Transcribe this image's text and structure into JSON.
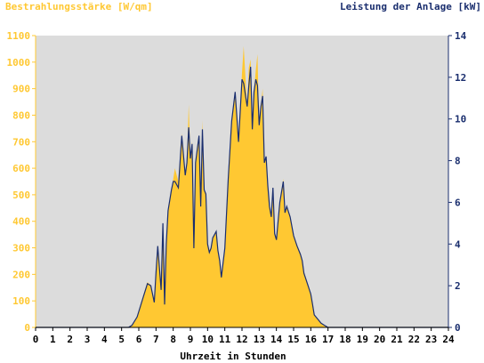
{
  "chart_data": {
    "type": "area",
    "y_left_label": "Bestrahlungsstärke [W/qm]",
    "y_right_label": "Leistung der Anlage [kW]",
    "xlabel": "Uhrzeit in Stunden",
    "x_ticks": [
      "0",
      "1",
      "2",
      "3",
      "4",
      "5",
      "6",
      "7",
      "8",
      "9",
      "10",
      "11",
      "12",
      "13",
      "14",
      "15",
      "16",
      "17",
      "18",
      "19",
      "20",
      "21",
      "22",
      "23",
      "24"
    ],
    "y_left_ticks": [
      "0",
      "100",
      "200",
      "300",
      "400",
      "500",
      "600",
      "700",
      "800",
      "900",
      "1000",
      "1100"
    ],
    "y_right_ticks": [
      "0",
      "2",
      "4",
      "6",
      "8",
      "10",
      "12",
      "14"
    ],
    "x_range": [
      0,
      24
    ],
    "y_left_range": [
      0,
      1100
    ],
    "y_right_range": [
      0,
      14
    ],
    "grid": false,
    "colors": {
      "plot_background": "#dcdcdc",
      "irradiance_fill": "#ffc832",
      "power_line": "#1a2e6e",
      "left_axis_text": "#ffc832",
      "right_axis_text": "#1a2e6e",
      "x_axis_text": "#000000"
    },
    "series": [
      {
        "axis": "left",
        "style": "area",
        "x": [
          0,
          5.4,
          5.6,
          5.9,
          6.2,
          6.5,
          6.7,
          6.9,
          7.0,
          7.1,
          7.3,
          7.4,
          7.5,
          7.6,
          7.7,
          7.8,
          7.9,
          8.0,
          8.1,
          8.3,
          8.5,
          8.7,
          8.8,
          8.9,
          9.0,
          9.1,
          9.2,
          9.3,
          9.5,
          9.6,
          9.7,
          9.8,
          9.9,
          10.0,
          10.1,
          10.2,
          10.3,
          10.5,
          10.6,
          10.7,
          10.8,
          11.0,
          11.2,
          11.4,
          11.6,
          11.8,
          12.0,
          12.1,
          12.3,
          12.4,
          12.5,
          12.6,
          12.7,
          12.8,
          12.9,
          13.0,
          13.1,
          13.2,
          13.3,
          13.4,
          13.5,
          13.6,
          13.7,
          13.8,
          13.9,
          14.0,
          14.2,
          14.4,
          14.5,
          14.6,
          14.8,
          15.0,
          15.2,
          15.4,
          15.5,
          15.6,
          15.8,
          16.0,
          16.1,
          16.2,
          16.4,
          16.6,
          16.8,
          17.0,
          17.2,
          17.4,
          17.6,
          17.8,
          18.0,
          18.2,
          18.4,
          18.6,
          18.8,
          19.0,
          19.2,
          19.4,
          19.6,
          19.8,
          20.0,
          24
        ],
        "values": [
          0,
          0,
          10,
          40,
          110,
          170,
          160,
          100,
          200,
          310,
          150,
          380,
          90,
          320,
          440,
          480,
          520,
          560,
          600,
          550,
          730,
          580,
          620,
          840,
          640,
          700,
          300,
          620,
          720,
          460,
          780,
          520,
          500,
          320,
          290,
          300,
          340,
          360,
          290,
          250,
          190,
          300,
          560,
          780,
          870,
          700,
          960,
          1060,
          830,
          980,
          1010,
          750,
          890,
          970,
          1030,
          760,
          840,
          900,
          620,
          650,
          540,
          460,
          420,
          530,
          360,
          330,
          470,
          560,
          430,
          460,
          420,
          350,
          310,
          280,
          250,
          210,
          170,
          130,
          90,
          50,
          30,
          15,
          5,
          0,
          0,
          0,
          0,
          0,
          0,
          0,
          0,
          0,
          0,
          0,
          0,
          0,
          0,
          0,
          0,
          0
        ]
      },
      {
        "axis": "right",
        "style": "line",
        "x": [
          0,
          5.4,
          5.6,
          5.9,
          6.2,
          6.5,
          6.7,
          6.9,
          7.0,
          7.1,
          7.3,
          7.4,
          7.5,
          7.6,
          7.7,
          7.8,
          7.9,
          8.0,
          8.1,
          8.3,
          8.5,
          8.7,
          8.8,
          8.9,
          9.0,
          9.1,
          9.2,
          9.3,
          9.5,
          9.6,
          9.7,
          9.8,
          9.9,
          10.0,
          10.1,
          10.2,
          10.3,
          10.5,
          10.6,
          10.7,
          10.8,
          11.0,
          11.2,
          11.4,
          11.6,
          11.8,
          12.0,
          12.1,
          12.3,
          12.4,
          12.5,
          12.6,
          12.7,
          12.8,
          12.9,
          13.0,
          13.1,
          13.2,
          13.3,
          13.4,
          13.5,
          13.6,
          13.7,
          13.8,
          13.9,
          14.0,
          14.2,
          14.4,
          14.5,
          14.6,
          14.8,
          15.0,
          15.2,
          15.4,
          15.5,
          15.6,
          15.8,
          16.0,
          16.1,
          16.2,
          16.4,
          16.6,
          16.8,
          17.0,
          17.2,
          17.4,
          17.6,
          17.8,
          18.0,
          18.2,
          18.4,
          18.6,
          18.8,
          19.0,
          19.2,
          19.4,
          19.6,
          19.8,
          20.0,
          24
        ],
        "values": [
          0,
          0,
          0.1,
          0.5,
          1.3,
          2.1,
          2.0,
          1.2,
          2.6,
          3.9,
          1.8,
          5.0,
          1.1,
          4.0,
          5.6,
          6.1,
          6.6,
          7.0,
          7.0,
          6.7,
          9.2,
          7.3,
          7.9,
          9.6,
          8.1,
          8.8,
          3.8,
          7.9,
          9.2,
          5.8,
          9.5,
          6.6,
          6.4,
          4.0,
          3.6,
          3.8,
          4.3,
          4.6,
          3.7,
          3.2,
          2.4,
          3.8,
          7.1,
          9.9,
          11.3,
          8.9,
          11.9,
          11.7,
          10.6,
          11.6,
          12.5,
          9.5,
          11.3,
          11.9,
          11.6,
          9.7,
          10.6,
          11.1,
          7.9,
          8.2,
          6.8,
          5.8,
          5.3,
          6.7,
          4.5,
          4.2,
          6.0,
          7.0,
          5.5,
          5.8,
          5.3,
          4.4,
          3.9,
          3.5,
          3.2,
          2.6,
          2.1,
          1.6,
          1.1,
          0.6,
          0.4,
          0.2,
          0.1,
          0,
          0,
          0,
          0,
          0,
          0,
          0,
          0,
          0,
          0,
          0,
          0,
          0,
          0,
          0,
          0,
          0
        ]
      }
    ]
  }
}
